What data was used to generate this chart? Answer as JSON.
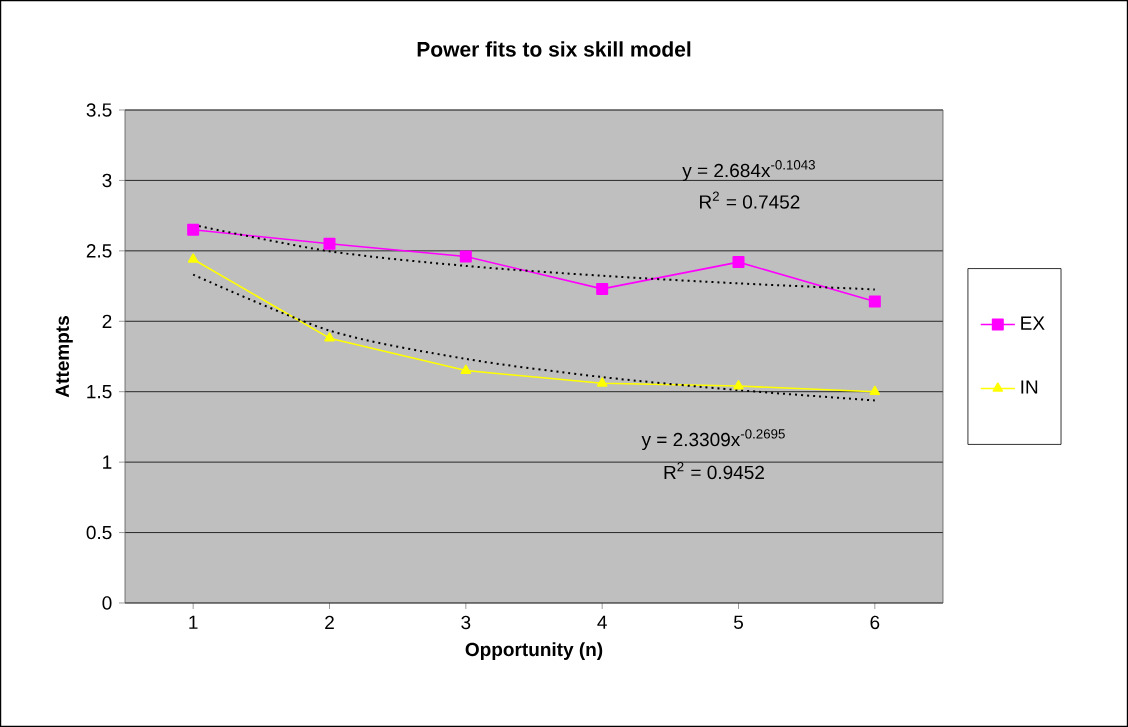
{
  "chart_data": {
    "type": "line",
    "title": "Power fits to six skill model",
    "xlabel": "Opportunity (n)",
    "ylabel": "Attempts",
    "x": [
      1,
      2,
      3,
      4,
      5,
      6
    ],
    "xlim": [
      0.5,
      6.5
    ],
    "xticks": [
      1,
      2,
      3,
      4,
      5,
      6
    ],
    "ylim": [
      0,
      3.5
    ],
    "yticks": [
      0,
      0.5,
      1,
      1.5,
      2,
      2.5,
      3,
      3.5
    ],
    "grid": "y",
    "legend": "right",
    "series": [
      {
        "name": "EX",
        "color": "#ff00ff",
        "marker": "square",
        "values": [
          2.65,
          2.55,
          2.46,
          2.23,
          2.42,
          2.14
        ]
      },
      {
        "name": "IN",
        "color": "#ffff00",
        "marker": "triangle",
        "values": [
          2.44,
          1.88,
          1.65,
          1.56,
          1.54,
          1.5
        ]
      },
      {
        "type": "line",
        "color": "#000000",
        "marker": "none",
        "line_style": "dotted",
        "x": [
          1,
          2,
          3,
          4,
          5,
          6
        ],
        "values": [
          2.684,
          2.497,
          2.393,
          2.323,
          2.269,
          2.226
        ]
      },
      {
        "type": "line",
        "color": "#000000",
        "marker": "none",
        "line_style": "dotted",
        "x": [
          1,
          2,
          3,
          4,
          5,
          6
        ],
        "values": [
          2.331,
          1.934,
          1.733,
          1.604,
          1.511,
          1.438
        ]
      }
    ],
    "annotations": [
      "y = 2.684x$^{-0.1043}$",
      "R$^{2}$ = 0.7452",
      "y = 2.3309x$^{-0.2695}$",
      "R$^{2}$ = 0.9452"
    ]
  }
}
